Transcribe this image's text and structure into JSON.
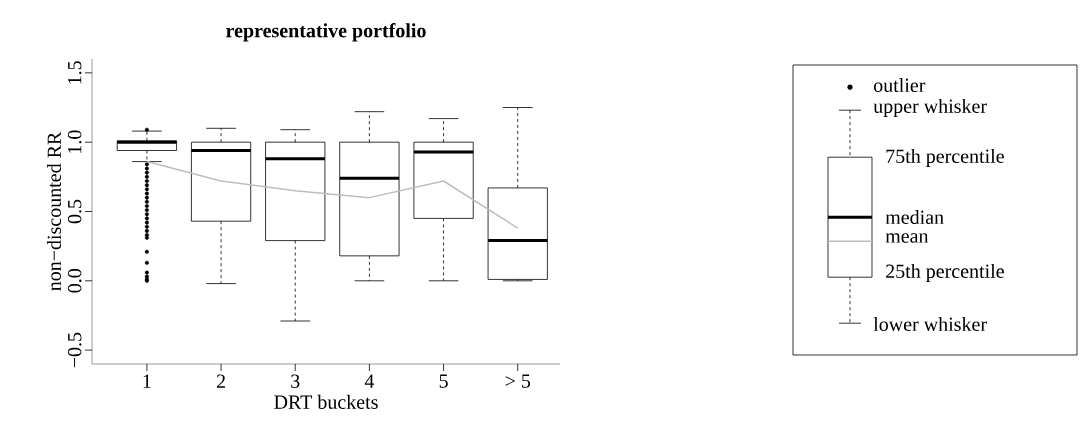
{
  "chart_data": {
    "type": "box",
    "title": "representative portfolio",
    "xlabel": "DRT buckets",
    "ylabel": "non−discounted RR",
    "categories": [
      "1",
      "2",
      "3",
      "4",
      "5",
      "> 5"
    ],
    "boxes": [
      {
        "low": 0.86,
        "q1": 0.94,
        "median": 1.0,
        "q3": 1.01,
        "high": 1.08,
        "outliers": [
          1.09,
          0.84,
          0.81,
          0.78,
          0.75,
          0.72,
          0.69,
          0.66,
          0.63,
          0.6,
          0.57,
          0.54,
          0.51,
          0.48,
          0.45,
          0.42,
          0.39,
          0.36,
          0.33,
          0.31,
          0.21,
          0.13,
          0.06,
          0.03,
          0.01,
          0.0
        ]
      },
      {
        "low": -0.02,
        "q1": 0.43,
        "median": 0.94,
        "q3": 1.0,
        "high": 1.1
      },
      {
        "low": -0.29,
        "q1": 0.29,
        "median": 0.88,
        "q3": 1.0,
        "high": 1.09
      },
      {
        "low": 0.0,
        "q1": 0.18,
        "median": 0.74,
        "q3": 1.0,
        "high": 1.22
      },
      {
        "low": 0.0,
        "q1": 0.45,
        "median": 0.93,
        "q3": 1.0,
        "high": 1.17
      },
      {
        "low": 0.0,
        "q1": 0.01,
        "median": 0.29,
        "q3": 0.67,
        "high": 1.25
      }
    ],
    "series": [
      {
        "type": "line",
        "color": "#bebebe",
        "values": [
          0.86,
          0.72,
          0.65,
          0.6,
          0.72,
          0.38
        ]
      }
    ],
    "ylim": [
      -0.6,
      1.6
    ],
    "yticks": [
      {
        "value": -0.5,
        "label": "−0.5"
      },
      {
        "value": 0,
        "label": "0.0"
      },
      {
        "value": 0.5,
        "label": "0.5"
      },
      {
        "value": 1,
        "label": "1.0"
      },
      {
        "value": 1.5,
        "label": "1.5"
      }
    ],
    "annotations": [
      "outlier",
      "upper whisker",
      "75th percentile",
      "median",
      "mean",
      "25th percentile",
      "lower whisker"
    ]
  }
}
